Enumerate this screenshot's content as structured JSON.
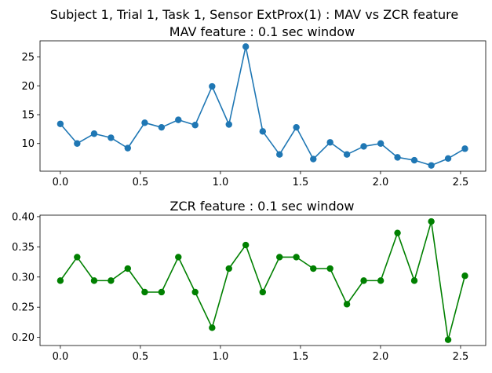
{
  "suptitle": "Subject 1, Trial 1, Task 1, Sensor ExtProx(1) : MAV vs ZCR feature",
  "chart_data": [
    {
      "type": "line",
      "title": "MAV feature : 0.1 sec window",
      "xlabel": "",
      "ylabel": "",
      "color": "#1f77b4",
      "marker": "circle",
      "xlim": [
        -0.127,
        2.657
      ],
      "ylim": [
        5.2,
        27.8
      ],
      "xticks": [
        0.0,
        0.5,
        1.0,
        1.5,
        2.0,
        2.5
      ],
      "xtick_labels": [
        "0.0",
        "0.5",
        "1.0",
        "1.5",
        "2.0",
        "2.5"
      ],
      "yticks": [
        10,
        15,
        20,
        25
      ],
      "ytick_labels": [
        "10",
        "15",
        "20",
        "25"
      ],
      "grid": false,
      "x": [
        0.0,
        0.105,
        0.211,
        0.316,
        0.421,
        0.527,
        0.632,
        0.737,
        0.842,
        0.948,
        1.053,
        1.158,
        1.264,
        1.369,
        1.474,
        1.58,
        1.685,
        1.79,
        1.895,
        2.001,
        2.106,
        2.211,
        2.317,
        2.422,
        2.527
      ],
      "y": [
        13.4,
        10.0,
        11.7,
        11.0,
        9.2,
        13.6,
        12.8,
        14.1,
        13.2,
        19.9,
        13.3,
        26.8,
        12.1,
        8.1,
        12.8,
        7.3,
        10.2,
        8.1,
        9.5,
        10.0,
        7.6,
        7.1,
        6.2,
        7.4,
        9.1
      ]
    },
    {
      "type": "line",
      "title": "ZCR feature : 0.1 sec window",
      "xlabel": "",
      "ylabel": "",
      "color": "#008000",
      "marker": "circle",
      "xlim": [
        -0.127,
        2.657
      ],
      "ylim": [
        0.1865,
        0.4025
      ],
      "xticks": [
        0.0,
        0.5,
        1.0,
        1.5,
        2.0,
        2.5
      ],
      "xtick_labels": [
        "0.0",
        "0.5",
        "1.0",
        "1.5",
        "2.0",
        "2.5"
      ],
      "yticks": [
        0.2,
        0.25,
        0.3,
        0.35,
        0.4
      ],
      "ytick_labels": [
        "0.20",
        "0.25",
        "0.30",
        "0.35",
        "0.40"
      ],
      "grid": false,
      "x": [
        0.0,
        0.105,
        0.211,
        0.316,
        0.421,
        0.527,
        0.632,
        0.737,
        0.842,
        0.948,
        1.053,
        1.158,
        1.264,
        1.369,
        1.474,
        1.58,
        1.685,
        1.79,
        1.895,
        2.001,
        2.106,
        2.211,
        2.317,
        2.422,
        2.527
      ],
      "y": [
        0.294,
        0.333,
        0.294,
        0.294,
        0.314,
        0.275,
        0.275,
        0.333,
        0.275,
        0.216,
        0.314,
        0.353,
        0.275,
        0.333,
        0.333,
        0.314,
        0.314,
        0.255,
        0.294,
        0.294,
        0.373,
        0.294,
        0.392,
        0.196,
        0.302
      ]
    }
  ]
}
